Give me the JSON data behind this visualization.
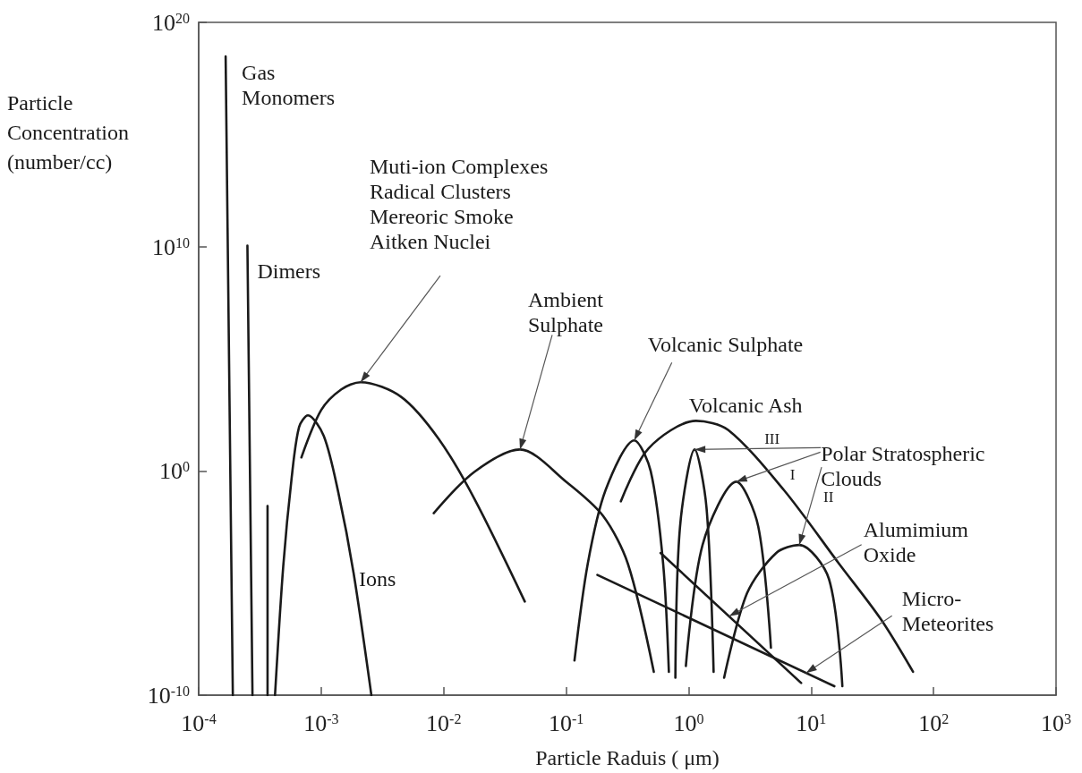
{
  "chart_data": {
    "type": "line",
    "xlabel": "Particle Raduis ( μm)",
    "ylabel": "Particle\nConcentration\n(number/cc)",
    "log": "xy",
    "grid": false,
    "marker": "none",
    "line_style": "solid",
    "xlim": [
      0.0001,
      1000
    ],
    "xticks": [
      {
        "value": 0.0001,
        "label": "10$^{-4}$"
      },
      {
        "value": 0.001,
        "label": "10$^{-3}$"
      },
      {
        "value": 0.01,
        "label": "10$^{-2}$"
      },
      {
        "value": 0.1,
        "label": "10$^{-1}$"
      },
      {
        "value": 1,
        "label": "10$^{0}$"
      },
      {
        "value": 10,
        "label": "10$^{1}$"
      },
      {
        "value": 100,
        "label": "10$^{2}$"
      },
      {
        "value": 1000,
        "label": "10$^{3}$"
      }
    ],
    "ylim": [
      1e-10,
      1e+20
    ],
    "yticks": [
      {
        "value": 1e-10,
        "label": "10$^{-10}$"
      },
      {
        "value": 1,
        "label": "10$^{0}$"
      },
      {
        "value": 10000000000.0,
        "label": "10$^{10}$"
      },
      {
        "value": 1e+20,
        "label": "10$^{20}$"
      }
    ],
    "series": [
      {
        "color": "#1a1a1a",
        "x": [
          0.000166,
          0.00019
        ],
        "values": [
          3e+18,
          1e-10
        ]
      },
      {
        "color": "#1a1a1a",
        "x": [
          0.00025,
          0.000275
        ],
        "values": [
          11000000000.0,
          1e-10
        ]
      },
      {
        "color": "#1a1a1a",
        "x": [
          0.000365,
          0.000365
        ],
        "values": [
          0.0275,
          1e-10
        ]
      },
      {
        "color": "#1a1a1a",
        "x": [
          0.00042,
          0.00049,
          0.000575,
          0.00066,
          0.00078,
          0.00105,
          0.00138,
          0.00184,
          0.00257
        ],
        "values": [
          1e-10,
          5.4e-05,
          0.52,
          90,
          300,
          36,
          0.11,
          2.8e-05,
          1e-10
        ]
      },
      {
        "color": "#1a1a1a",
        "x": [
          0.00069,
          0.001,
          0.00146,
          0.0021,
          0.0045,
          0.0091,
          0.0178,
          0.046
        ],
        "values": [
          4,
          510,
          4300,
          9000,
          2000,
          27,
          0.058,
          1.5e-06
        ]
      },
      {
        "color": "#1a1a1a",
        "x": [
          0.0083,
          0.0178,
          0.042,
          0.1,
          0.2,
          0.32,
          0.52
        ],
        "values": [
          0.013,
          0.9,
          9,
          0.33,
          0.01,
          7e-05,
          1.1e-09
        ]
      },
      {
        "color": "#1a1a1a",
        "x": [
          0.117,
          0.15,
          0.21,
          0.36,
          0.49,
          0.62,
          0.69
        ],
        "values": [
          3.5e-09,
          7e-05,
          0.14,
          23,
          1,
          7e-05,
          1.1e-09
        ]
      },
      {
        "color": "#1a1a1a",
        "x": [
          0.28,
          0.47,
          1.15,
          2.1,
          6,
          17,
          37,
          68
        ],
        "values": [
          0.044,
          10,
          170,
          68,
          0.14,
          7e-05,
          2.5e-07,
          1.1e-09
        ]
      },
      {
        "color": "#1a1a1a",
        "x": [
          0.78,
          0.85,
          1.12,
          1.4,
          1.6
        ],
        "values": [
          6e-10,
          0.003,
          9,
          0.023,
          1.1e-09
        ]
      },
      {
        "color": "#1a1a1a",
        "x": [
          0.95,
          1.3,
          2.45,
          3.7,
          4.7
        ],
        "values": [
          2e-09,
          0.0005,
          0.33,
          0.0034,
          1.3e-08
        ]
      },
      {
        "color": "#1a1a1a",
        "x": [
          1.95,
          3,
          5.2,
          8,
          14,
          18
        ],
        "values": [
          6e-10,
          3.5e-06,
          0.00022,
          0.0005,
          1.5e-05,
          2.5e-10
        ]
      },
      {
        "color": "#1a1a1a",
        "x": [
          0.59,
          8.3
        ],
        "values": [
          0.00022,
          3.5e-10
        ]
      },
      {
        "color": "#1a1a1a",
        "x": [
          0.18,
          15.5
        ],
        "values": [
          2.3e-05,
          2.5e-10
        ]
      }
    ],
    "annotations": [
      {
        "text": "Gas\nMonomers",
        "x": 0.000166,
        "y": 3e+18
      },
      {
        "text": "Dimers",
        "x": 0.00025,
        "y": 11000000000.0
      },
      {
        "text": "Ions",
        "x": 0.00184,
        "y": 2.8e-05
      },
      {
        "text": "Muti-ion Complexes\nRadical Clusters\nMereoric Smoke\nAitken Nuclei",
        "x": 0.0021,
        "y": 9000
      },
      {
        "text": "Ambient\nSulphate",
        "x": 0.042,
        "y": 9
      },
      {
        "text": "Volcanic Sulphate",
        "x": 0.36,
        "y": 23
      },
      {
        "text": "Volcanic Ash",
        "x": 1.15,
        "y": 170
      },
      {
        "text": "Polar Stratospheric\nClouds",
        "x": 1.12,
        "y": 9
      },
      "III",
      "I",
      "II",
      {
        "text": "Alumimium\nOxide",
        "x": 2.14,
        "y": 3.3e-07
      },
      {
        "text": "Micro-\nMeteorites",
        "x": 9.1,
        "y": 9.7e-10
      }
    ]
  }
}
